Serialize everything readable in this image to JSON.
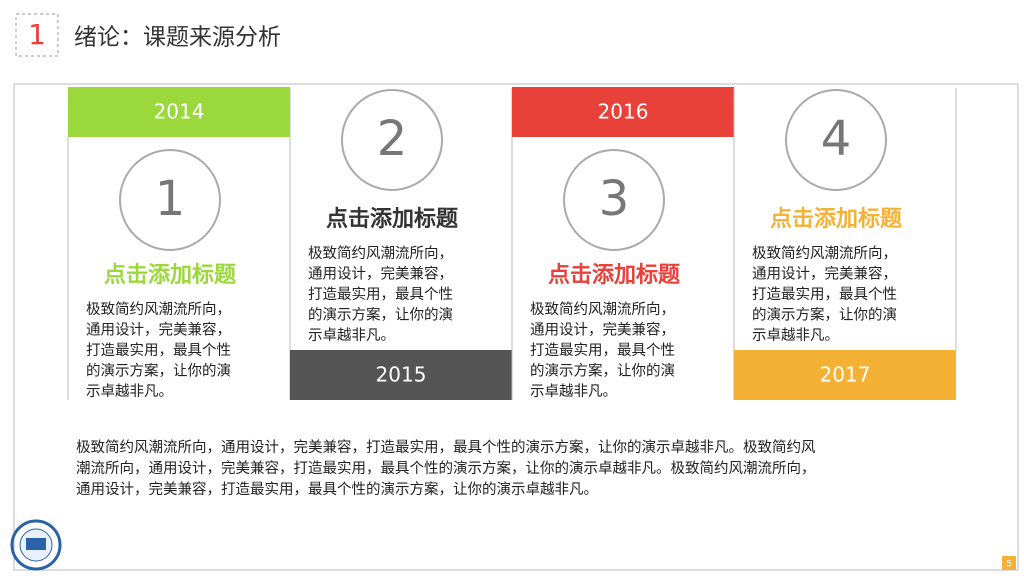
{
  "header": {
    "number": "1",
    "title": "绪论：课题来源分析"
  },
  "columns": [
    {
      "year": "2014",
      "number": "1",
      "title": "点击添加标题",
      "lines": [
        "极致简约风潮流所向，",
        "通用设计，完美兼容，",
        "打造最实用，最具个性",
        "的演示方案，让你的演",
        "示卓越非凡。"
      ]
    },
    {
      "year": "2015",
      "number": "2",
      "title": "点击添加标题",
      "lines": [
        "极致简约风潮流所向，",
        "通用设计，完美兼容，",
        "打造最实用，最具个性",
        "的演示方案，让你的演",
        "示卓越非凡。"
      ]
    },
    {
      "year": "2016",
      "number": "3",
      "title": "点击添加标题",
      "lines": [
        "极致简约风潮流所向，",
        "通用设计，完美兼容，",
        "打造最实用，最具个性",
        "的演示方案，让你的演",
        "示卓越非凡。"
      ]
    },
    {
      "year": "2017",
      "number": "4",
      "title": "点击添加标题",
      "lines": [
        "极致简约风潮流所向，",
        "通用设计，完美兼容，",
        "打造最实用，最具个性",
        "的演示方案，让你的演",
        "示卓越非凡。"
      ]
    }
  ],
  "paragraph": [
    "极致简约风潮流所向，通用设计，完美兼容，打造最实用，最具个性的演示方案，让你的演示卓越非凡。极致简约风",
    "潮流所向，通用设计，完美兼容，打造最实用，最具个性的演示方案，让你的演示卓越非凡。极致简约风潮流所向，",
    "通用设计，完美兼容，打造最实用，最具个性的演示方案，让你的演示卓越非凡。"
  ],
  "page_number": "5"
}
